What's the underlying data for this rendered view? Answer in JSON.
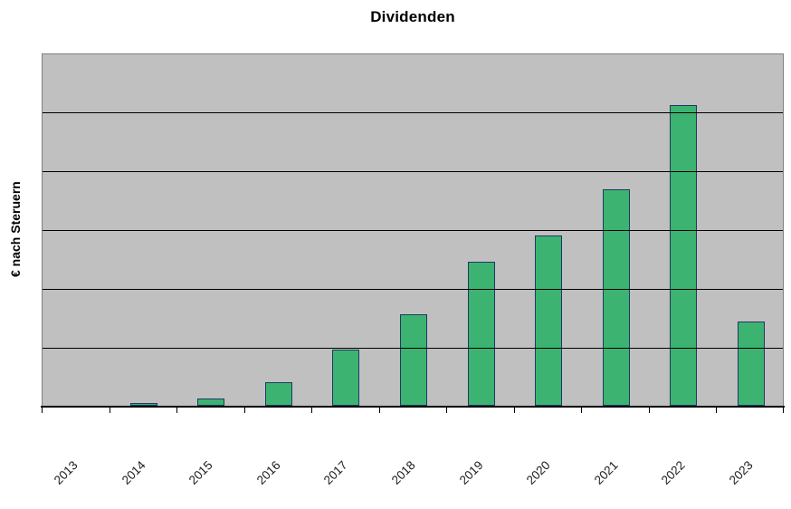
{
  "chart": {
    "title": "Dividenden",
    "y_axis_label": "€ nach Steruern"
  },
  "chart_data": {
    "type": "bar",
    "title": "Dividenden",
    "xlabel": "",
    "ylabel": "€ nach Steruern",
    "categories": [
      "2013",
      "2014",
      "2015",
      "2016",
      "2017",
      "2018",
      "2019",
      "2020",
      "2021",
      "2022",
      "2023"
    ],
    "values": [
      0,
      0.04,
      0.13,
      0.4,
      0.95,
      1.55,
      2.45,
      2.89,
      3.68,
      5.1,
      1.43
    ],
    "units_note": "no y tick labels shown; 1.0 = one horizontal gridline interval",
    "ylim": [
      0,
      6
    ],
    "gridline_count": 5,
    "grid": "horizontal",
    "legend": "none",
    "colors": {
      "bar_fill": "#3CB371",
      "bar_border": "#1F3864",
      "plot_background": "#C0C0C0",
      "plot_border": "#808080",
      "gridline": "#000000",
      "axis": "#000000"
    }
  }
}
